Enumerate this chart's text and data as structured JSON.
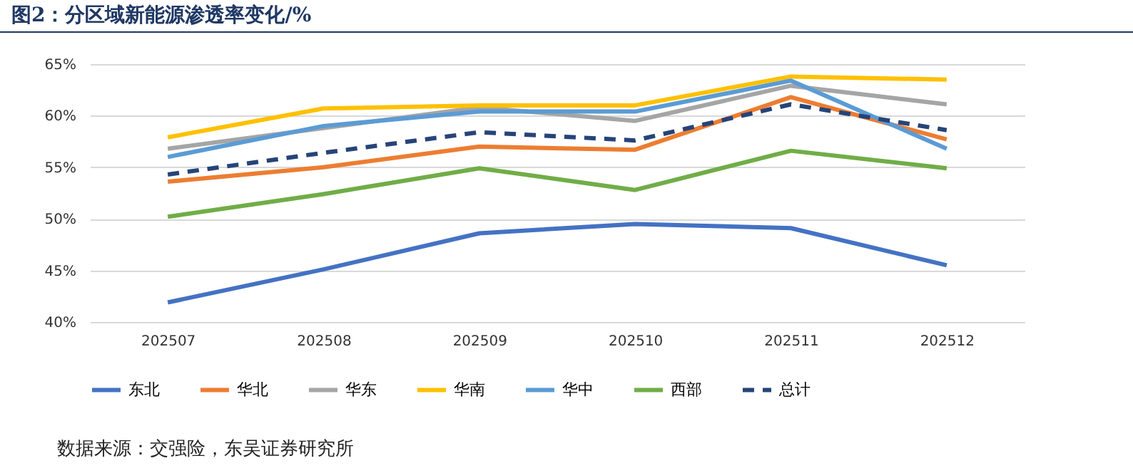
{
  "chart_data": {
    "type": "line",
    "title": "图2：分区域新能源渗透率变化/%",
    "categories": [
      "202507",
      "202508",
      "202509",
      "202510",
      "202511",
      "202512"
    ],
    "series": [
      {
        "name": "东北",
        "color": "#4472c4",
        "values": [
          41.9,
          45.1,
          48.6,
          49.5,
          49.1,
          45.5
        ]
      },
      {
        "name": "华北",
        "color": "#ed7d31",
        "values": [
          53.6,
          55.0,
          57.0,
          56.7,
          61.8,
          57.7
        ]
      },
      {
        "name": "华东",
        "color": "#a5a5a5",
        "values": [
          56.8,
          58.8,
          60.8,
          59.5,
          62.9,
          61.1
        ]
      },
      {
        "name": "华南",
        "color": "#ffc000",
        "values": [
          57.9,
          60.7,
          61.0,
          61.0,
          63.8,
          63.5
        ]
      },
      {
        "name": "华中",
        "color": "#5b9bd5",
        "values": [
          56.0,
          59.0,
          60.4,
          60.4,
          63.4,
          56.8
        ]
      },
      {
        "name": "西部",
        "color": "#70ad47",
        "values": [
          50.2,
          52.4,
          54.9,
          52.8,
          56.6,
          54.9
        ]
      },
      {
        "name": "总计",
        "color": "#264478",
        "line_style": "dashed",
        "values": [
          54.3,
          56.4,
          58.4,
          57.6,
          61.1,
          58.6
        ]
      }
    ],
    "ylim": [
      40,
      65
    ],
    "yticks": [
      {
        "value": 40,
        "label": "40%"
      },
      {
        "value": 45,
        "label": "45%"
      },
      {
        "value": 50,
        "label": "50%"
      },
      {
        "value": 55,
        "label": "55%"
      },
      {
        "value": 60,
        "label": "60%"
      },
      {
        "value": 65,
        "label": "65%"
      }
    ],
    "grid": "y",
    "legend": "bottom",
    "annotations": [
      "数据来源：交强险，东吴证券研究所"
    ]
  }
}
